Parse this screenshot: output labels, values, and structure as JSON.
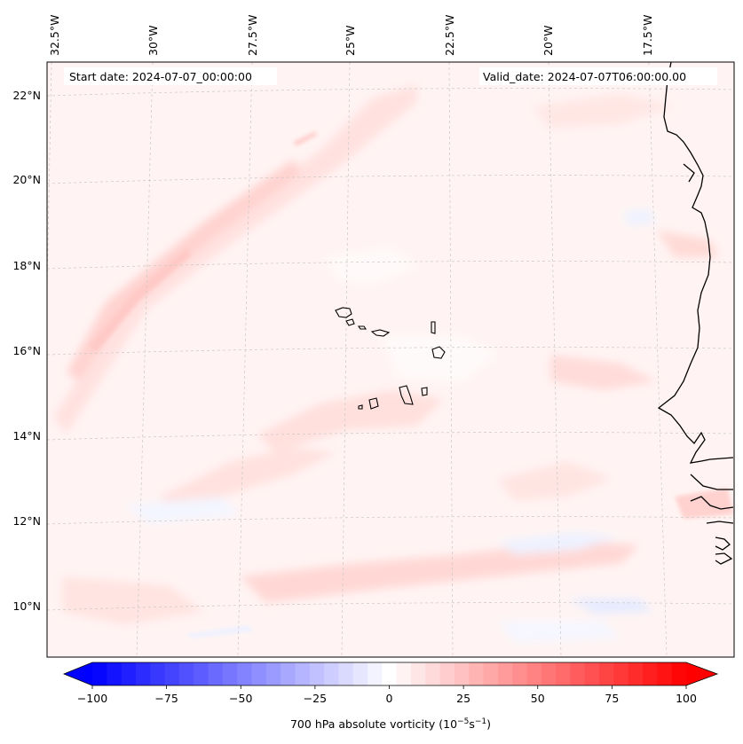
{
  "map": {
    "start_date_label": "Start date: 2024-07-07_00:00:00",
    "valid_date_label": "Valid_date: 2024-07-07T06:00:00.00",
    "longitude_labels": [
      "32.5°W",
      "30°W",
      "27.5°W",
      "25°W",
      "22.5°W",
      "20°W",
      "17.5°W"
    ],
    "latitude_labels": [
      "22°N",
      "20°N",
      "18°N",
      "16°N",
      "14°N",
      "12°N",
      "10°N"
    ],
    "gridlines": true,
    "coastline_color": "#000000",
    "field_colormap": "bwr",
    "region": "Cabo Verde Islands and West African coast"
  },
  "colorbar": {
    "label_text": "700 hPa absolute vorticity",
    "label_units": "(10",
    "label_exp1": "−5",
    "label_mid": "s",
    "label_exp2": "−1",
    "label_close": ")",
    "ticks": [
      "−100",
      "−75",
      "−50",
      "−25",
      "0",
      "25",
      "50",
      "75",
      "100"
    ],
    "min": -100,
    "max": 100,
    "levels": 41,
    "low_color": "#0000ff",
    "high_color": "#ff0000"
  }
}
